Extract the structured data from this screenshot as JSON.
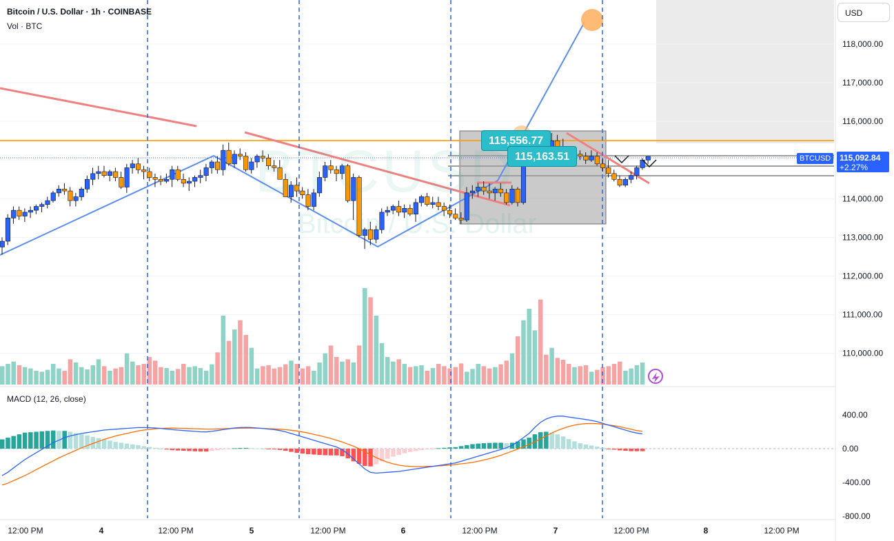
{
  "header": {
    "title": "Bitcoin / U.S. Dollar · 1h · COINBASE",
    "volume_label": "Vol · BTC",
    "macd_label": "MACD (12, 26, close)",
    "currency_button": "USD"
  },
  "watermark": {
    "symbol": "BTCUSD",
    "name": "Bitcoin / U.S. Dollar"
  },
  "last_price": {
    "symbol": "BTCUSD",
    "price": "115,092.84",
    "change": "+2.27%"
  },
  "callouts": [
    {
      "label": "115,556.77"
    },
    {
      "label": "115,163.51"
    }
  ],
  "chart_data": {
    "type": "candlestick",
    "x_labels": [
      "12:00 PM",
      "4",
      "12:00 PM",
      "5",
      "12:00 PM",
      "6",
      "12:00 PM",
      "7",
      "12:00 PM",
      "8",
      "12:00 PM"
    ],
    "price_axis": {
      "ticks": [
        "118,000.00",
        "117,000.00",
        "116,000.00",
        "115,000.00",
        "114,000.00",
        "113,000.00",
        "112,000.00",
        "111,000.00",
        "110,000.00"
      ],
      "ylim": [
        109200,
        119000
      ]
    },
    "macd_axis": {
      "ticks": [
        "400.00",
        "0.00",
        "-400.00",
        "-800.00"
      ],
      "ylim": [
        -900,
        550
      ]
    },
    "colors": {
      "up": "#2962ff",
      "down": "#ff9800",
      "vol_up": "#8fd3c6",
      "vol_down": "#f5a3a3",
      "macd": "#2962ff",
      "signal": "#ff6d00"
    },
    "series": [
      {
        "name": "Price",
        "values": [
          [
            112750,
            113000,
            112550,
            112900
          ],
          [
            112900,
            113600,
            112800,
            113500
          ],
          [
            113500,
            113800,
            113350,
            113700
          ],
          [
            113700,
            113800,
            113450,
            113550
          ],
          [
            113550,
            113750,
            113400,
            113650
          ],
          [
            113650,
            113800,
            113500,
            113700
          ],
          [
            113700,
            113850,
            113600,
            113800
          ],
          [
            113800,
            113900,
            113650,
            113850
          ],
          [
            113850,
            114050,
            113750,
            113950
          ],
          [
            113950,
            114200,
            113900,
            114150
          ],
          [
            114150,
            114350,
            114050,
            114250
          ],
          [
            114250,
            114400,
            114100,
            114200
          ],
          [
            114200,
            114300,
            113800,
            113950
          ],
          [
            113950,
            114150,
            113800,
            114050
          ],
          [
            114050,
            114300,
            113950,
            114250
          ],
          [
            114250,
            114600,
            114150,
            114500
          ],
          [
            114500,
            114800,
            114350,
            114650
          ],
          [
            114650,
            114850,
            114500,
            114700
          ],
          [
            114700,
            114850,
            114550,
            114600
          ],
          [
            114600,
            114750,
            114450,
            114700
          ],
          [
            114700,
            114800,
            114450,
            114550
          ],
          [
            114550,
            114700,
            114250,
            114300
          ],
          [
            114300,
            114900,
            114150,
            114800
          ],
          [
            114800,
            115000,
            114650,
            114900
          ],
          [
            114900,
            115050,
            114650,
            114750
          ],
          [
            114750,
            114850,
            114500,
            114700
          ],
          [
            114700,
            114800,
            114450,
            114550
          ],
          [
            114550,
            114650,
            114300,
            114500
          ],
          [
            114500,
            114600,
            114350,
            114450
          ],
          [
            114450,
            114650,
            114400,
            114500
          ],
          [
            114500,
            114850,
            114300,
            114750
          ],
          [
            114750,
            114850,
            114450,
            114500
          ],
          [
            114500,
            114650,
            114300,
            114400
          ],
          [
            114400,
            114550,
            114200,
            114450
          ],
          [
            114450,
            114600,
            114300,
            114550
          ],
          [
            114550,
            114750,
            114400,
            114600
          ],
          [
            114600,
            114900,
            114450,
            114800
          ],
          [
            114800,
            115000,
            114650,
            114950
          ],
          [
            114950,
            115100,
            114650,
            114750
          ],
          [
            114750,
            115400,
            114600,
            115250
          ],
          [
            115250,
            115450,
            114850,
            114900
          ],
          [
            114900,
            115250,
            114800,
            115150
          ],
          [
            115150,
            115300,
            115000,
            115100
          ],
          [
            115100,
            115200,
            114700,
            114750
          ],
          [
            114750,
            115050,
            114650,
            114950
          ],
          [
            114950,
            115150,
            114800,
            115100
          ],
          [
            115100,
            115250,
            114950,
            115050
          ],
          [
            115050,
            115150,
            114750,
            114850
          ],
          [
            114850,
            115000,
            114700,
            114800
          ],
          [
            114800,
            115000,
            114500,
            114500
          ],
          [
            114500,
            114650,
            114050,
            114050
          ],
          [
            114050,
            114450,
            113900,
            114350
          ],
          [
            114350,
            114550,
            114050,
            114200
          ],
          [
            114200,
            114300,
            114000,
            114100
          ],
          [
            114100,
            114250,
            113700,
            113800
          ],
          [
            113800,
            114250,
            113700,
            114150
          ],
          [
            114150,
            114700,
            114050,
            114550
          ],
          [
            114550,
            114950,
            114450,
            114850
          ],
          [
            114850,
            115000,
            114650,
            114750
          ],
          [
            114750,
            114850,
            114450,
            114650
          ],
          [
            114650,
            114900,
            114500,
            114850
          ],
          [
            114850,
            114900,
            113900,
            113950
          ],
          [
            113950,
            114650,
            113450,
            114550
          ],
          [
            114550,
            114600,
            113000,
            113050
          ],
          [
            113050,
            113250,
            112700,
            113200
          ],
          [
            113200,
            113400,
            112800,
            112950
          ],
          [
            112950,
            113300,
            112850,
            113200
          ],
          [
            113200,
            113750,
            113100,
            113650
          ],
          [
            113650,
            113800,
            113550,
            113700
          ],
          [
            113700,
            113850,
            113600,
            113800
          ],
          [
            113800,
            113950,
            113550,
            113650
          ],
          [
            113650,
            113850,
            113500,
            113750
          ],
          [
            113750,
            113850,
            113550,
            113600
          ],
          [
            113600,
            114000,
            113400,
            113900
          ],
          [
            113900,
            114100,
            113800,
            114050
          ],
          [
            114050,
            114150,
            113800,
            113850
          ],
          [
            113850,
            114050,
            113750,
            113900
          ],
          [
            113900,
            114050,
            113700,
            113800
          ],
          [
            113800,
            113900,
            113550,
            113700
          ],
          [
            113700,
            113850,
            113500,
            113600
          ],
          [
            113600,
            113750,
            113450,
            113500
          ],
          [
            113500,
            113650,
            113350,
            113450
          ],
          [
            113450,
            114300,
            113400,
            114150
          ],
          [
            114150,
            114350,
            114000,
            114200
          ],
          [
            114200,
            114400,
            114050,
            114300
          ],
          [
            114300,
            114450,
            114100,
            114200
          ],
          [
            114200,
            114400,
            114000,
            114150
          ],
          [
            114150,
            114300,
            113950,
            114250
          ],
          [
            114250,
            114400,
            114050,
            114150
          ],
          [
            114150,
            114250,
            113850,
            113900
          ],
          [
            113900,
            114350,
            113850,
            114250
          ],
          [
            114250,
            114300,
            113800,
            113900
          ],
          [
            113900,
            115150,
            113850,
            115000
          ],
          [
            115000,
            115300,
            114900,
            115150
          ],
          [
            115150,
            115600,
            115050,
            115400
          ],
          [
            115400,
            115650,
            115150,
            115250
          ],
          [
            115250,
            115450,
            114950,
            115050
          ],
          [
            115050,
            115700,
            115000,
            115500
          ],
          [
            115500,
            115650,
            115250,
            115350
          ],
          [
            115350,
            115550,
            115000,
            115100
          ],
          [
            115100,
            115250,
            114850,
            114950
          ],
          [
            114950,
            115200,
            114850,
            115150
          ],
          [
            115150,
            115250,
            115000,
            115100
          ],
          [
            115100,
            115200,
            114900,
            115000
          ],
          [
            115000,
            115250,
            114950,
            115100
          ],
          [
            115100,
            115200,
            114850,
            114900
          ],
          [
            114900,
            115050,
            114700,
            114800
          ],
          [
            114800,
            115000,
            114550,
            114650
          ],
          [
            114650,
            114750,
            114450,
            114500
          ],
          [
            114500,
            114600,
            114300,
            114350
          ],
          [
            114350,
            114550,
            114300,
            114500
          ],
          [
            114500,
            114700,
            114400,
            114600
          ],
          [
            114600,
            114850,
            114500,
            114800
          ],
          [
            114800,
            115050,
            114750,
            115000
          ],
          [
            115000,
            115100,
            114900,
            115093
          ]
        ]
      },
      {
        "name": "Vol",
        "values": [
          40,
          45,
          50,
          42,
          38,
          35,
          30,
          28,
          32,
          45,
          35,
          30,
          55,
          48,
          38,
          33,
          42,
          55,
          40,
          30,
          35,
          38,
          68,
          50,
          42,
          45,
          60,
          52,
          38,
          36,
          30,
          34,
          45,
          38,
          40,
          36,
          30,
          44,
          70,
          150,
          95,
          120,
          140,
          108,
          80,
          35,
          40,
          42,
          35,
          38,
          44,
          52,
          45,
          35,
          40,
          30,
          48,
          68,
          85,
          60,
          50,
          55,
          48,
          85,
          210,
          190,
          150,
          90,
          60,
          50,
          55,
          45,
          38,
          40,
          42,
          30,
          36,
          45,
          40,
          35,
          38,
          46,
          28,
          34,
          45,
          40,
          35,
          38,
          44,
          52,
          68,
          105,
          140,
          165,
          118,
          185,
          65,
          80,
          58,
          54,
          45,
          38,
          40,
          42,
          28,
          32,
          38,
          40,
          45,
          50,
          30,
          35,
          42,
          48
        ]
      },
      {
        "name": "MACD",
        "values": [
          -320,
          -280,
          -230,
          -180,
          -130,
          -90,
          -50,
          -10,
          30,
          70,
          100,
          130,
          150,
          165,
          180,
          190,
          200,
          210,
          220,
          225,
          230,
          235,
          240,
          245,
          250,
          250,
          248,
          245,
          240,
          232,
          225,
          220,
          215,
          210,
          205,
          200,
          198,
          205,
          215,
          225,
          235,
          245,
          250,
          252,
          250,
          245,
          240,
          232,
          225,
          215,
          200,
          180,
          160,
          140,
          120,
          100,
          80,
          60,
          40,
          20,
          -10,
          -60,
          -120,
          -180,
          -240,
          -280,
          -290,
          -285,
          -280,
          -275,
          -270,
          -260,
          -250,
          -240,
          -230,
          -220,
          -210,
          -200,
          -190,
          -180,
          -170,
          -150,
          -130,
          -110,
          -90,
          -70,
          -50,
          -30,
          -10,
          10,
          40,
          80,
          130,
          180,
          250,
          310,
          350,
          375,
          385,
          385,
          375,
          365,
          355,
          345,
          335,
          320,
          300,
          280,
          260,
          240,
          220,
          200,
          185,
          175
        ]
      },
      {
        "name": "Signal",
        "values": [
          -430,
          -410,
          -380,
          -350,
          -320,
          -285,
          -250,
          -215,
          -180,
          -145,
          -110,
          -80,
          -50,
          -20,
          10,
          35,
          60,
          85,
          110,
          130,
          150,
          165,
          180,
          195,
          210,
          220,
          228,
          235,
          240,
          242,
          243,
          242,
          240,
          238,
          236,
          234,
          232,
          232,
          234,
          236,
          238,
          240,
          242,
          243,
          243,
          242,
          240,
          237,
          234,
          230,
          225,
          218,
          210,
          198,
          185,
          170,
          155,
          138,
          120,
          100,
          80,
          55,
          30,
          0,
          -35,
          -70,
          -105,
          -135,
          -160,
          -180,
          -195,
          -205,
          -210,
          -212,
          -212,
          -210,
          -208,
          -205,
          -200,
          -195,
          -188,
          -180,
          -172,
          -163,
          -150,
          -135,
          -118,
          -100,
          -80,
          -55,
          -30,
          -5,
          20,
          50,
          80,
          115,
          150,
          185,
          215,
          240,
          262,
          278,
          290,
          296,
          298,
          296,
          290,
          282,
          272,
          260,
          245,
          230,
          215,
          205
        ]
      }
    ],
    "histogram_note": "histogram = MACD - Signal"
  }
}
